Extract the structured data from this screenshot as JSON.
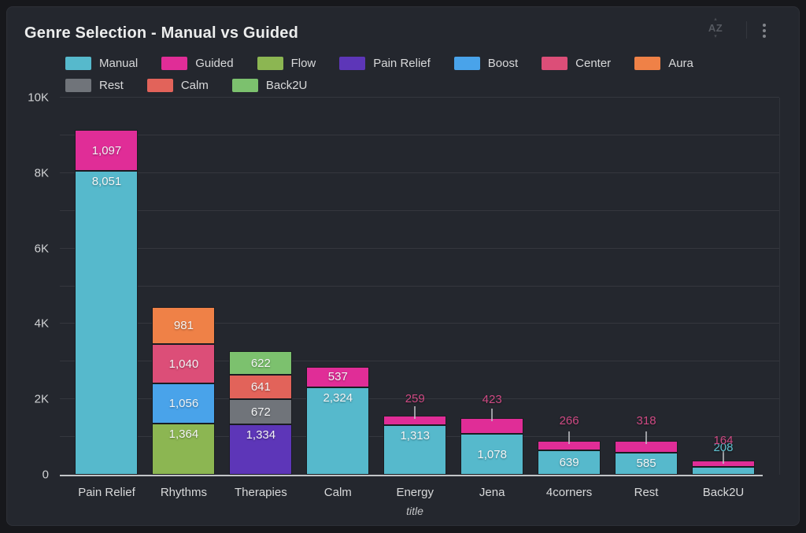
{
  "panel": {
    "title": "Genre Selection - Manual vs Guided",
    "header": {
      "sort_label": "AZ",
      "sort_caret_up": "▴",
      "sort_caret_down": "▾"
    }
  },
  "chart_data": {
    "type": "bar",
    "stacked": true,
    "title": "Genre Selection - Manual vs Guided",
    "xlabel": "title",
    "ylabel": "",
    "ylim": [
      0,
      10000
    ],
    "grid_interval": 1000,
    "grid": true,
    "legend_position": "top",
    "yticks": [
      {
        "value": 0,
        "label": "0"
      },
      {
        "value": 2000,
        "label": "2K"
      },
      {
        "value": 4000,
        "label": "4K"
      },
      {
        "value": 6000,
        "label": "6K"
      },
      {
        "value": 8000,
        "label": "8K"
      },
      {
        "value": 10000,
        "label": "10K"
      }
    ],
    "series": [
      {
        "name": "Manual",
        "color": "#56b9cc"
      },
      {
        "name": "Guided",
        "color": "#e02d97"
      },
      {
        "name": "Flow",
        "color": "#8cb652"
      },
      {
        "name": "Pain Relief",
        "color": "#5d36b8"
      },
      {
        "name": "Boost",
        "color": "#49a3ea"
      },
      {
        "name": "Center",
        "color": "#dc4e78"
      },
      {
        "name": "Aura",
        "color": "#ef8147"
      },
      {
        "name": "Rest",
        "color": "#70747a"
      },
      {
        "name": "Calm",
        "color": "#e2635a"
      },
      {
        "name": "Back2U",
        "color": "#7cc16e"
      }
    ],
    "categories": [
      "Pain Relief",
      "Rhythms",
      "Therapies",
      "Calm",
      "Energy",
      "Jena",
      "4corners",
      "Rest",
      "Back2U"
    ],
    "bars": [
      {
        "category": "Pain Relief",
        "segments": [
          {
            "series": "Manual",
            "value": 8051,
            "label": "8,051",
            "placement": "inside"
          },
          {
            "series": "Guided",
            "value": 1097,
            "label": "1,097",
            "placement": "inside"
          }
        ]
      },
      {
        "category": "Rhythms",
        "segments": [
          {
            "series": "Flow",
            "value": 1364,
            "label": "1,364",
            "placement": "inside"
          },
          {
            "series": "Boost",
            "value": 1056,
            "label": "1,056",
            "placement": "inside"
          },
          {
            "series": "Center",
            "value": 1040,
            "label": "1,040",
            "placement": "inside"
          },
          {
            "series": "Aura",
            "value": 981,
            "label": "981",
            "placement": "inside"
          }
        ]
      },
      {
        "category": "Therapies",
        "segments": [
          {
            "series": "Pain Relief",
            "value": 1334,
            "label": "1,334",
            "placement": "inside"
          },
          {
            "series": "Rest",
            "value": 672,
            "label": "672",
            "placement": "inside"
          },
          {
            "series": "Calm",
            "value": 641,
            "label": "641",
            "placement": "inside"
          },
          {
            "series": "Back2U",
            "value": 622,
            "label": "622",
            "placement": "inside"
          }
        ]
      },
      {
        "category": "Calm",
        "segments": [
          {
            "series": "Manual",
            "value": 2324,
            "label": "2,324",
            "placement": "inside"
          },
          {
            "series": "Guided",
            "value": 537,
            "label": "537",
            "placement": "inside"
          }
        ]
      },
      {
        "category": "Energy",
        "segments": [
          {
            "series": "Manual",
            "value": 1313,
            "label": "1,313",
            "placement": "inside"
          },
          {
            "series": "Guided",
            "value": 259,
            "label": "259",
            "placement": "outside",
            "label_offset": 21,
            "label_color": "#cf4a84"
          }
        ]
      },
      {
        "category": "Jena",
        "segments": [
          {
            "series": "Manual",
            "value": 1078,
            "label": "1,078",
            "placement": "inside"
          },
          {
            "series": "Guided",
            "value": 423,
            "label": "423",
            "placement": "outside",
            "label_offset": 23,
            "label_color": "#cf4a84"
          }
        ]
      },
      {
        "category": "4corners",
        "segments": [
          {
            "series": "Manual",
            "value": 639,
            "label": "639",
            "placement": "inside"
          },
          {
            "series": "Guided",
            "value": 266,
            "label": "266",
            "placement": "outside",
            "label_offset": 25,
            "label_color": "#cf4a84"
          }
        ]
      },
      {
        "category": "Rest",
        "segments": [
          {
            "series": "Manual",
            "value": 585,
            "label": "585",
            "placement": "inside"
          },
          {
            "series": "Guided",
            "value": 318,
            "label": "318",
            "placement": "outside",
            "label_offset": 25,
            "label_color": "#cf4a84"
          }
        ]
      },
      {
        "category": "Back2U",
        "segments": [
          {
            "series": "Manual",
            "value": 208,
            "label": "208",
            "placement": "outside",
            "label_offset": 16,
            "label_color": "#5fc3d1"
          },
          {
            "series": "Guided",
            "value": 164,
            "label": "164",
            "placement": "outside",
            "label_offset": 25,
            "label_color": "#cf4a84"
          }
        ]
      }
    ]
  },
  "colors": {
    "page_bg": "#17181c",
    "panel_bg": "#24272e",
    "gridline": "rgba(255,255,255,0.08)",
    "axis_line": "#c3c6c9",
    "text": "#d8d9da",
    "title_text": "#eceded"
  }
}
